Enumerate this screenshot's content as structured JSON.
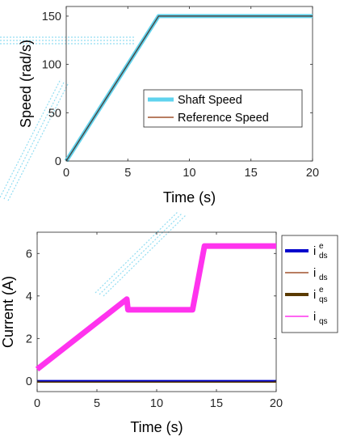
{
  "chart_data": [
    {
      "type": "line",
      "xlabel": "Time (s)",
      "ylabel": "Speed (rad/s)",
      "xlim": [
        0,
        20
      ],
      "ylim": [
        0,
        160
      ],
      "xticks": [
        "0",
        "5",
        "10",
        "15",
        "20"
      ],
      "yticks": [
        "0",
        "50",
        "100",
        "150"
      ],
      "legend_position": "bottom-right",
      "series": [
        {
          "name": "Shaft Speed",
          "color": "#5fd3ee",
          "x": [
            0,
            7.5,
            20
          ],
          "y": [
            0,
            150,
            150
          ]
        },
        {
          "name": "Reference Speed",
          "color": "#a0522d",
          "x": [
            0,
            7.5,
            20
          ],
          "y": [
            0,
            150,
            150
          ]
        }
      ]
    },
    {
      "type": "line",
      "xlabel": "Time (s)",
      "ylabel": "Current (A)",
      "xlim": [
        0,
        20
      ],
      "ylim": [
        -0.5,
        7
      ],
      "xticks": [
        "0",
        "5",
        "10",
        "15",
        "20"
      ],
      "yticks": [
        "0",
        "2",
        "4",
        "6"
      ],
      "legend_position": "outside-right",
      "series": [
        {
          "name": "i",
          "sub": "ds",
          "sup": "e",
          "color": "#0000cc",
          "x": [
            0,
            7.5,
            13,
            14,
            20
          ],
          "y": [
            0,
            0,
            0,
            0,
            0
          ]
        },
        {
          "name": "i",
          "sub": "ds",
          "sup": "",
          "color": "#a0522d",
          "x": [
            0,
            7.5,
            7.6,
            13,
            14,
            20
          ],
          "y": [
            0.55,
            3.85,
            3.35,
            3.35,
            6.35,
            6.35
          ]
        },
        {
          "name": "i",
          "sub": "qs",
          "sup": "e",
          "color": "#5a3a00",
          "x": [
            0,
            20
          ],
          "y": [
            -0.05,
            -0.05
          ]
        },
        {
          "name": "i",
          "sub": "qs",
          "sup": "",
          "color": "#ff33ee",
          "x": [
            0,
            7.5,
            7.6,
            13,
            14,
            20
          ],
          "y": [
            0.55,
            3.85,
            3.35,
            3.35,
            6.35,
            6.35
          ]
        }
      ]
    }
  ]
}
